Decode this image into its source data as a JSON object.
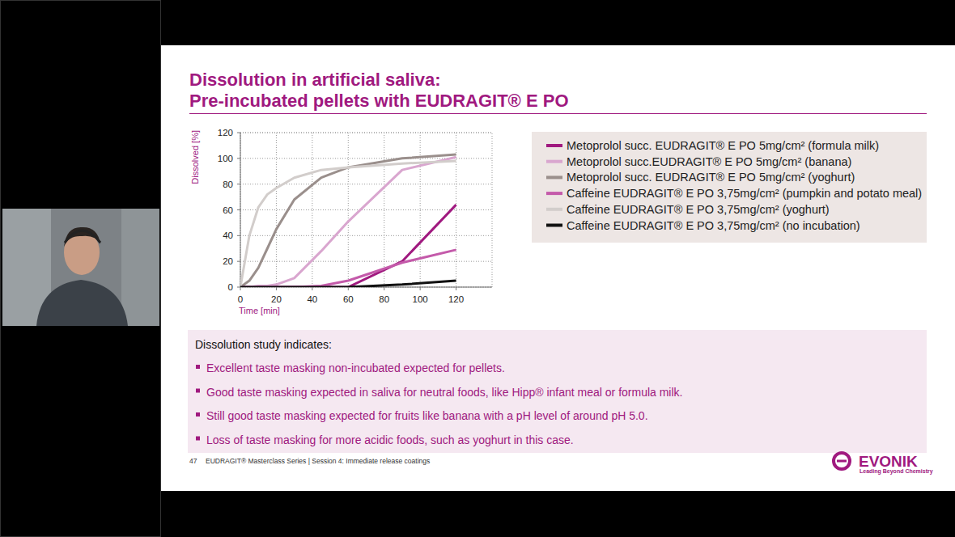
{
  "chart_data": {
    "type": "line",
    "x_label": "Time [min]",
    "y_label": "Dissolved [%]",
    "x": [
      0,
      5,
      10,
      15,
      20,
      30,
      45,
      60,
      90,
      120
    ],
    "series": [
      {
        "name": "Metoprolol succ. EUDRAGIT® E PO 5mg/cm² (formula milk)",
        "color": "#a0197f",
        "values": [
          0,
          0,
          0,
          0,
          0,
          0,
          0,
          0,
          20,
          64
        ]
      },
      {
        "name": "Metoprolol succ.EUDRAGIT® E PO 5mg/cm² (banana)",
        "color": "#d9a6cf",
        "values": [
          0,
          0,
          1,
          1,
          2,
          7,
          28,
          51,
          91,
          101
        ]
      },
      {
        "name": "Metoprolol succ. EUDRAGIT® E PO 5mg/cm² (yoghurt)",
        "color": "#9a8f8c",
        "values": [
          0,
          5,
          15,
          30,
          45,
          68,
          85,
          93,
          100,
          103
        ]
      },
      {
        "name": "Caffeine EUDRAGIT® E PO 3,75mg/cm² (pumpkin and potato meal)",
        "color": "#c45aaa",
        "values": [
          0,
          0,
          0,
          0,
          0,
          0,
          1,
          5,
          19,
          29
        ]
      },
      {
        "name": "Caffeine EUDRAGIT® E PO 3,75mg/cm² (yoghurt)",
        "color": "#d2cdcb",
        "values": [
          0,
          40,
          62,
          72,
          77,
          85,
          91,
          93,
          96,
          98
        ]
      },
      {
        "name": "Caffeine EUDRAGIT® E PO 3,75mg/cm² (no incubation)",
        "color": "#111111",
        "values": [
          0,
          0,
          0,
          0,
          0,
          0,
          0,
          0,
          2,
          5
        ]
      }
    ],
    "xlim": [
      0,
      140
    ],
    "xticks": [
      0,
      20,
      40,
      60,
      80,
      100,
      120
    ],
    "ylim": [
      0,
      120
    ],
    "yticks": [
      0,
      20,
      40,
      60,
      80,
      100,
      120
    ],
    "grid": true,
    "legend": "right"
  },
  "slide": {
    "title": [
      "Dissolution in artificial saliva:",
      "Pre-incubated pellets with EUDRAGIT® E PO"
    ],
    "summary_heading": "Dissolution study indicates:",
    "bullets": [
      "Excellent taste masking non-incubated expected for pellets.",
      "Good taste masking expected in saliva for neutral foods, like Hipp® infant meal or formula milk.",
      "Still good taste masking expected for fruits like banana with a pH level of around pH 5.0.",
      "Loss of taste masking for more acidic foods, such as yoghurt in this case."
    ],
    "page_number": "47",
    "footer": "EUDRAGIT® Masterclass Series | Session 4: Immediate release coatings",
    "logo": "EVONIK",
    "logo_tagline": "Leading Beyond Chemistry"
  }
}
